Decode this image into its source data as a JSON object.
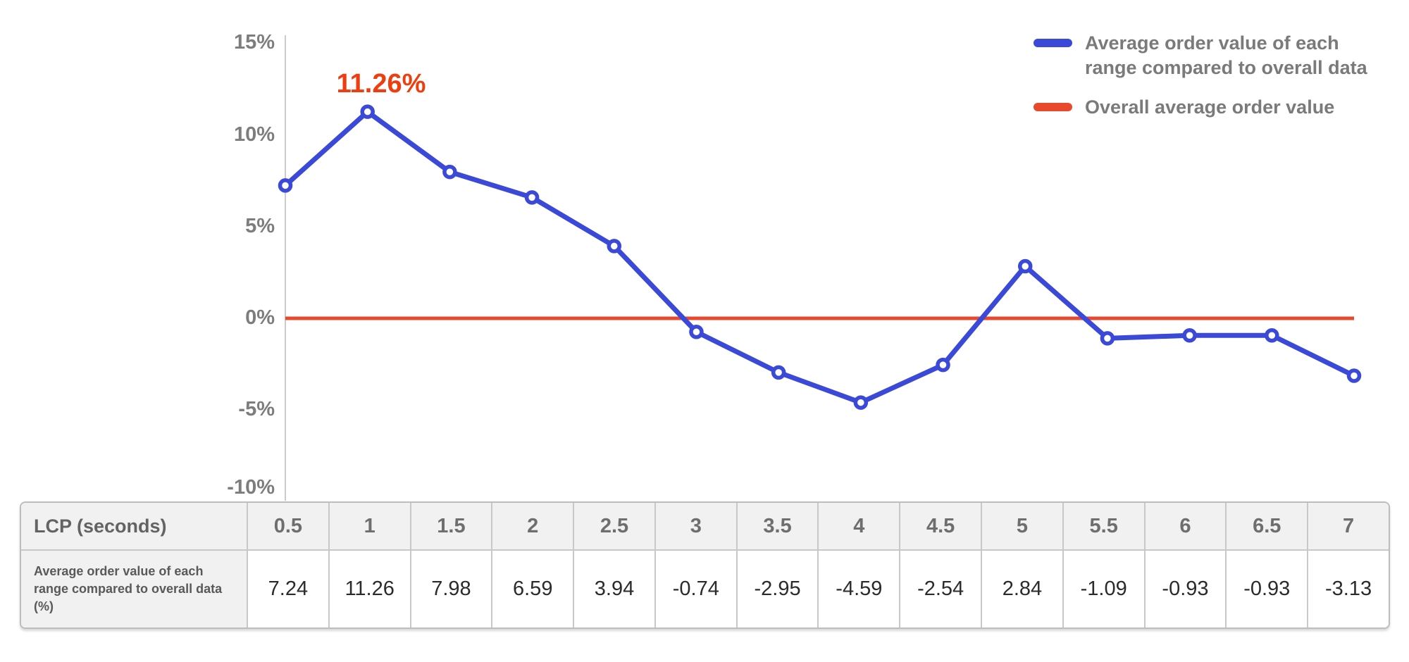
{
  "chart_data": {
    "type": "line",
    "x": [
      0.5,
      1,
      1.5,
      2,
      2.5,
      3,
      3.5,
      4,
      4.5,
      5,
      5.5,
      6,
      6.5,
      7
    ],
    "x_label": "LCP (seconds)",
    "y_tick_labels": [
      "15%",
      "10%",
      "5%",
      "0%",
      "-5%",
      "-10%"
    ],
    "y_ticks": [
      15,
      10,
      5,
      0,
      -5,
      -10
    ],
    "ylim": [
      -10,
      15
    ],
    "grid": false,
    "legend_position": "top-right",
    "series": [
      {
        "name": "Average order value of each range compared to overall data",
        "color": "#3b49d8",
        "marker": "circle",
        "values": [
          7.24,
          11.26,
          7.98,
          6.59,
          3.94,
          -0.74,
          -2.95,
          -4.59,
          -2.54,
          2.84,
          -1.09,
          -0.93,
          -0.93,
          -3.13
        ]
      },
      {
        "name": "Overall average order value",
        "color": "#e8492c",
        "type": "constant",
        "value": 0
      }
    ],
    "annotation": {
      "text": "11.26%",
      "x": 1,
      "y": 11.26,
      "color": "#ee3e0f"
    }
  },
  "table": {
    "row1_header": "LCP (seconds)",
    "row2_header": "Average order value of each range compared to overall data (%)",
    "columns": [
      "0.5",
      "1",
      "1.5",
      "2",
      "2.5",
      "3",
      "3.5",
      "4",
      "4.5",
      "5",
      "5.5",
      "6",
      "6.5",
      "7"
    ],
    "values": [
      "7.24",
      "11.26",
      "7.98",
      "6.59",
      "3.94",
      "-0.74",
      "-2.95",
      "-4.59",
      "-2.54",
      "2.84",
      "-1.09",
      "-0.93",
      "-0.93",
      "-3.13"
    ]
  },
  "colors": {
    "aov_line": "#3b49d8",
    "overall_line": "#e8492c",
    "annotation": "#ee3e0f",
    "axis_line": "#cccccc",
    "axis_label": "#7d7d7d",
    "legend_text": "#7a7a7a",
    "table_header_text": "#636363",
    "table_value_text": "#2b2b2b",
    "table_header_bg": "#f1f1f1",
    "table_border": "#c8c8c8"
  }
}
